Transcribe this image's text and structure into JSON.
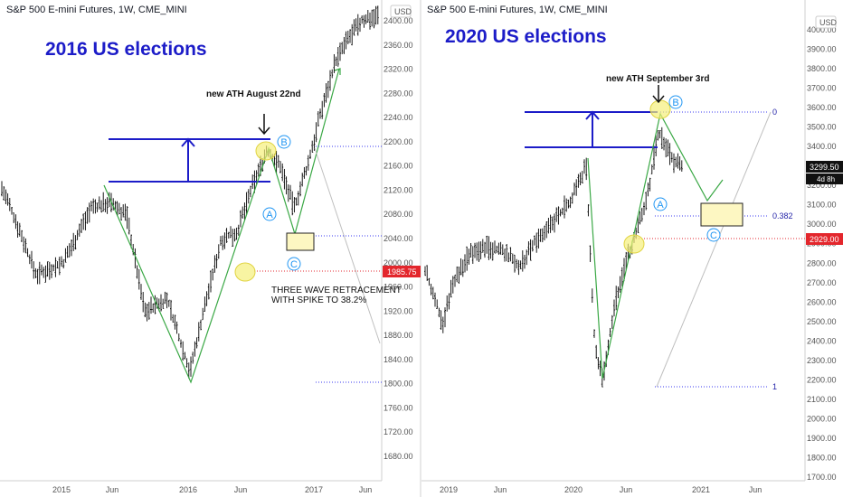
{
  "left": {
    "symbol": "S&P 500 E-mini Futures, 1W, CME_MINI",
    "title": "2016 US elections",
    "note_ath": "new ATH August 22nd",
    "note_retrace_1": "THREE WAVE RETRACEMENT",
    "note_retrace_2": "WITH SPIKE TO 38.2%",
    "currency": "USD",
    "price_label": "1985.75",
    "wave_labels": [
      "A",
      "B",
      "C"
    ]
  },
  "right": {
    "symbol": "S&P 500 E-mini Futures, 1W, CME_MINI",
    "title": "2020 US elections",
    "note_ath": "new ATH September 3rd",
    "currency": "USD",
    "price_label": "2929.00",
    "last_price": "3299.50",
    "countdown": "4d 8h",
    "wave_labels": [
      "A",
      "B",
      "C"
    ],
    "fib_levels": [
      "0",
      "0.382",
      "1"
    ]
  },
  "colors": {
    "title": "#1c1cc8",
    "bars": "#000000",
    "wave_lines": "#3aa845",
    "projection": "#1c1cc8",
    "highlight": "#f5f07a",
    "label_red": "#e3262c",
    "circle_labels": "#2196f3"
  },
  "chart_data": [
    {
      "type": "ohlc",
      "title": "S&P 500 E-mini Futures, 1W, CME_MINI",
      "annotation_title": "2016 US elections",
      "x_ticks": [
        "2015",
        "Jun",
        "2016",
        "Jun",
        "2017",
        "Jun"
      ],
      "y_ticks": [
        1680,
        1720,
        1760,
        1800,
        1840,
        1880,
        1920,
        1960,
        2000,
        2040,
        2080,
        2120,
        2160,
        2200,
        2240,
        2280,
        2320,
        2360,
        2400
      ],
      "ylim": [
        1660,
        2415
      ],
      "price_label": 1985.75,
      "key_points": [
        {
          "label": "low",
          "date": "2016-02",
          "value": 1800
        },
        {
          "label": "B",
          "date": "2016-08",
          "value": 2190
        },
        {
          "label": "A",
          "date": "2016-09",
          "value": 2120
        },
        {
          "label": "C",
          "date": "2016-11",
          "value": 2040
        },
        {
          "label": "wave 3 target",
          "date": "2017-02",
          "value": 2320
        }
      ]
    },
    {
      "type": "ohlc",
      "title": "S&P 500 E-mini Futures, 1W, CME_MINI",
      "annotation_title": "2020 US elections",
      "x_ticks": [
        "2019",
        "Jun",
        "2020",
        "Jun",
        "2021",
        "Jun"
      ],
      "y_ticks": [
        1700,
        1800,
        1900,
        2000,
        2100,
        2200,
        2300,
        2400,
        2500,
        2600,
        2700,
        2800,
        2900,
        3000,
        3100,
        3200,
        3300,
        3400,
        3500,
        3600,
        3700,
        3800,
        3900,
        4000
      ],
      "ylim": [
        1680,
        4080
      ],
      "last_price": 3299.5,
      "price_label": 2929,
      "fib_levels": [
        {
          "level": "0",
          "value": 3590
        },
        {
          "level": "0.382",
          "value": 3050
        },
        {
          "level": "1",
          "value": 2170
        }
      ],
      "key_points": [
        {
          "label": "low",
          "date": "2020-03",
          "value": 2180
        },
        {
          "label": "B",
          "date": "2020-09",
          "value": 3590
        },
        {
          "label": "A",
          "date": "2020-09",
          "value": 3230
        },
        {
          "label": "C",
          "date": "2020-11",
          "value": 2930
        }
      ]
    }
  ]
}
